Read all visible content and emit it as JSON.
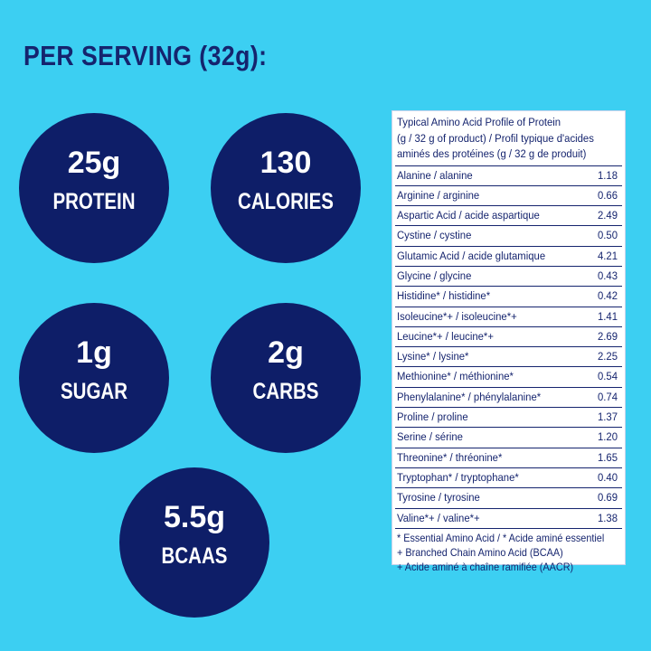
{
  "header": {
    "title": "PER SERVING (32g):"
  },
  "circles": [
    {
      "value": "25g",
      "label": "PROTEIN"
    },
    {
      "value": "130",
      "label": "CALORIES"
    },
    {
      "value": "1g",
      "label": "SUGAR"
    },
    {
      "value": "2g",
      "label": "CARBS"
    },
    {
      "value": "5.5g",
      "label": "BCAAS"
    }
  ],
  "table": {
    "header": [
      "Typical Amino Acid Profile of Protein",
      "(g / 32 g of product) / Profil typique d'acides",
      "aminés des protéines (g / 32 g de produit)"
    ],
    "rows": [
      [
        "Alanine / alanine",
        "1.18"
      ],
      [
        "Arginine / arginine",
        "0.66"
      ],
      [
        "Aspartic Acid / acide aspartique",
        "2.49"
      ],
      [
        "Cystine / cystine",
        "0.50"
      ],
      [
        "Glutamic Acid / acide glutamique",
        "4.21"
      ],
      [
        "Glycine / glycine",
        "0.43"
      ],
      [
        "Histidine* / histidine*",
        "0.42"
      ],
      [
        "Isoleucine*+ / isoleucine*+",
        "1.41"
      ],
      [
        "Leucine*+ / leucine*+",
        "2.69"
      ],
      [
        "Lysine* / lysine*",
        "2.25"
      ],
      [
        "Methionine* / méthionine*",
        "0.54"
      ],
      [
        "Phenylalanine* / phénylalanine*",
        "0.74"
      ],
      [
        "Proline / proline",
        "1.37"
      ],
      [
        "Serine / sérine",
        "1.20"
      ],
      [
        "Threonine* / thréonine*",
        "1.65"
      ],
      [
        "Tryptophan* / tryptophane*",
        "0.40"
      ],
      [
        "Tyrosine / tyrosine",
        "0.69"
      ],
      [
        "Valine*+ / valine*+",
        "1.38"
      ]
    ],
    "footnotes": [
      "* Essential Amino Acid / * Acide aminé essentiel",
      "+ Branched Chain Amino Acid (BCAA)",
      "+ Acide aminé à chaîne ramifiée (AACR)"
    ]
  }
}
